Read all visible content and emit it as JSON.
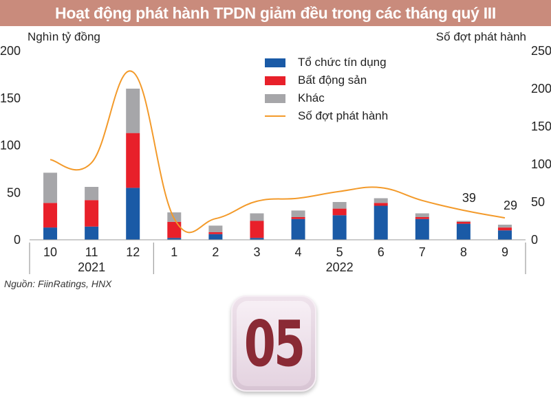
{
  "title": "Hoạt động phát hành TPDN giảm đều trong các tháng quý III",
  "ylabel_left": "Nghìn tỷ đồng",
  "ylabel_right": "Số đợt phát hành",
  "source": "Nguồn: FiinRatings, HNX",
  "badge_number": "05",
  "legend": [
    {
      "label": "Tổ chức tín dụng",
      "color": "#1a5aa6",
      "kind": "bar"
    },
    {
      "label": "Bất động sản",
      "color": "#e8202a",
      "kind": "bar"
    },
    {
      "label": "Khác",
      "color": "#a6a6a9",
      "kind": "bar"
    },
    {
      "label": "Số đợt phát hành",
      "color": "#f39a2a",
      "kind": "line"
    }
  ],
  "chart_data": {
    "type": "bar",
    "stacked": true,
    "categories": [
      "10",
      "11",
      "12",
      "1",
      "2",
      "3",
      "4",
      "5",
      "6",
      "7",
      "8",
      "9"
    ],
    "year_groups": [
      {
        "label": "2021",
        "categories": [
          "10",
          "11",
          "12"
        ]
      },
      {
        "label": "2022",
        "categories": [
          "1",
          "2",
          "3",
          "4",
          "5",
          "6",
          "7",
          "8",
          "9"
        ]
      }
    ],
    "series": [
      {
        "name": "Tổ chức tín dụng",
        "color": "#1a5aa6",
        "values": [
          13,
          14,
          55,
          2,
          6,
          2,
          22,
          26,
          36,
          22,
          17,
          10
        ]
      },
      {
        "name": "Bất động sản",
        "color": "#e8202a",
        "values": [
          26,
          28,
          58,
          17,
          2,
          18,
          2,
          7,
          3,
          2,
          2,
          3
        ]
      },
      {
        "name": "Khác",
        "color": "#a6a6a9",
        "values": [
          32,
          14,
          47,
          10,
          7,
          8,
          7,
          7,
          5,
          4,
          1,
          3
        ]
      }
    ],
    "line_series": {
      "name": "Số đợt phát hành",
      "color": "#f39a2a",
      "axis": "right",
      "values": [
        106,
        102,
        222,
        28,
        28,
        51,
        55,
        64,
        69,
        52,
        39,
        29
      ]
    },
    "data_labels": [
      {
        "index": 10,
        "text": "39"
      },
      {
        "index": 11,
        "text": "29"
      }
    ],
    "ylim_left": [
      0,
      200
    ],
    "yticks_left": [
      0,
      50,
      100,
      150,
      200
    ],
    "ylim_right": [
      0,
      250
    ],
    "yticks_right": [
      0,
      50,
      100,
      150,
      200,
      250
    ],
    "grid": false,
    "legend_position": "top-right"
  }
}
